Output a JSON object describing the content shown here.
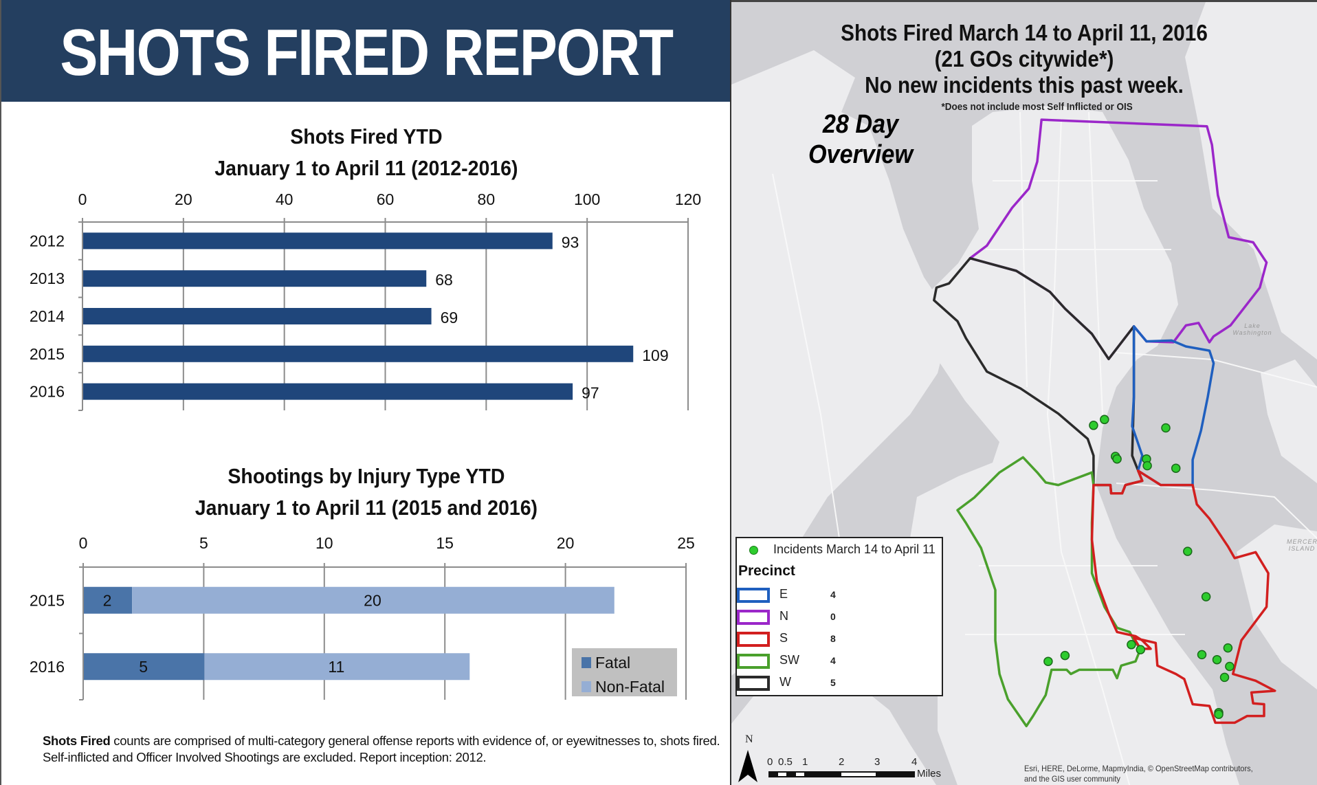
{
  "header": {
    "title": "SHOTS FIRED REPORT",
    "color": "#243f60"
  },
  "chart_data": [
    {
      "type": "bar",
      "orientation": "horizontal",
      "title": "Shots Fired YTD",
      "subtitle": "January 1 to April 11 (2012-2016)",
      "categories": [
        "2012",
        "2013",
        "2014",
        "2015",
        "2016"
      ],
      "values": [
        93,
        68,
        69,
        109,
        97
      ],
      "data_labels": [
        "93",
        "68",
        "69",
        "109",
        "97"
      ],
      "xlim": [
        0,
        120
      ],
      "xticks": [
        "0",
        "20",
        "40",
        "60",
        "80",
        "100",
        "120"
      ],
      "xlabel": "",
      "ylabel": "",
      "grid": true,
      "axis_position": "top",
      "bar_color": "#1f467b"
    },
    {
      "type": "bar",
      "orientation": "horizontal",
      "stacked": true,
      "title": "Shootings by Injury Type YTD",
      "subtitle": "January 1 to April 11 (2015 and 2016)",
      "categories": [
        "2015",
        "2016"
      ],
      "series": [
        {
          "name": "Fatal",
          "values": [
            2,
            5
          ],
          "color": "#4a74a8"
        },
        {
          "name": "Non-Fatal",
          "values": [
            20,
            11
          ],
          "color": "#95aed4"
        }
      ],
      "xlim": [
        0,
        25
      ],
      "xticks": [
        "0",
        "5",
        "10",
        "15",
        "20",
        "25"
      ],
      "xlabel": "",
      "ylabel": "",
      "grid": true,
      "axis_position": "top",
      "legend": {
        "placement": "bottom-right",
        "entries": [
          "Fatal",
          "Non-Fatal"
        ]
      }
    }
  ],
  "footnote": {
    "bold": "Shots Fired",
    "text": " counts are comprised of multi-category general offense reports with evidence of, or eyewitnesses to, shots fired. Self-inflicted and Officer Involved Shootings are excluded. Report inception: 2012."
  },
  "map": {
    "title_line1": "Shots Fired March 14 to April 11, 2016",
    "title_line2": "(21 GOs citywide*)",
    "title_line3": "No new incidents this past week.",
    "note": "*Does not include most Self Inflicted or OIS",
    "overview_line1": "28 Day",
    "overview_line2": "Overview",
    "legend": {
      "incidents_label": "Incidents March 14 to April 11",
      "incident_color": "#2ecc2e",
      "precinct_title": "Precinct",
      "precincts": [
        {
          "name": "E",
          "count": "4",
          "color": "#1f5fbf"
        },
        {
          "name": "N",
          "count": "0",
          "color": "#9b27c9"
        },
        {
          "name": "S",
          "count": "8",
          "color": "#d21f1f"
        },
        {
          "name": "SW",
          "count": "4",
          "color": "#4aa02c"
        },
        {
          "name": "W",
          "count": "5",
          "color": "#2b2b2b"
        }
      ]
    },
    "north_label": "N",
    "scale": {
      "ticks": [
        "0",
        "0.5",
        "1",
        "2",
        "3",
        "4"
      ],
      "unit": "Miles"
    },
    "attribution_line1": "Esri, HERE, DeLorme, MapmyIndia, © OpenStreetMap contributors,",
    "attribution_line2": "and the GIS user community",
    "water_labels": {
      "lake": "Lake Washington",
      "island": "MERCER ISLAND"
    }
  }
}
